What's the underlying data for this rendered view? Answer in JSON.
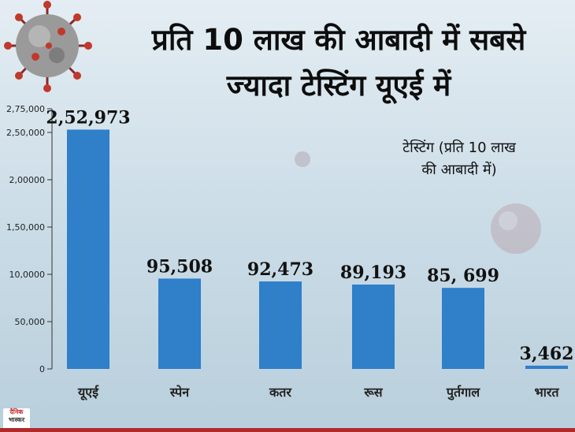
{
  "title_line1": "प्रति 10 लाख की आबादी में सबसे",
  "title_line2": "ज्यादा टेस्टिंग यूएई में",
  "legend_line1": "टेस्टिंग (प्रति 10 लाख",
  "legend_line2": "की आबादी में)",
  "logo": {
    "line1": "दैनिक",
    "line2": "भास्कर"
  },
  "colors": {
    "bar": "#2f7fc9",
    "axis": "#333333"
  },
  "chart_data": {
    "type": "bar",
    "title": "प्रति 10 लाख की आबादी में सबसे ज्यादा टेस्टिंग यूएई में",
    "categories": [
      "यूएई",
      "स्पेन",
      "कतर",
      "रूस",
      "पुर्तगाल",
      "भारत"
    ],
    "values": [
      252973,
      95508,
      92473,
      89193,
      85699,
      3462
    ],
    "value_labels": [
      "2,52,973",
      "95,508",
      "92,473",
      "89,193",
      "85, 699",
      "3,462"
    ],
    "yticks": [
      0,
      50000,
      100000,
      150000,
      200000,
      250000,
      275000
    ],
    "ytick_labels": [
      "0",
      "50,000",
      "10,0000",
      "1,50,000",
      "2,00000",
      "2,50,000",
      "2,75,000"
    ],
    "ylim": [
      0,
      275000
    ],
    "xlabel": "",
    "ylabel": "",
    "grid": false,
    "legend": "right"
  }
}
